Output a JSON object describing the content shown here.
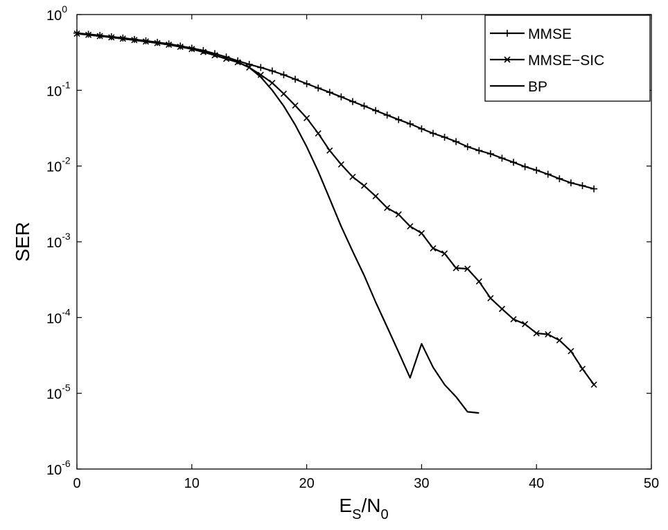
{
  "chart_data": {
    "type": "line",
    "xlabel": {
      "main": "E",
      "sub1": "S",
      "slash": "/N",
      "sub2": "0"
    },
    "ylabel": "SER",
    "xlim": [
      0,
      50
    ],
    "ylim": [
      1e-06,
      1
    ],
    "yscale": "log",
    "grid": false,
    "legend_position": "top-right",
    "x_ticks": [
      "0",
      "10",
      "20",
      "30",
      "40",
      "50"
    ],
    "y_ticks": [
      {
        "base": "10",
        "exp": "0"
      },
      {
        "base": "10",
        "exp": "-1"
      },
      {
        "base": "10",
        "exp": "-2"
      },
      {
        "base": "10",
        "exp": "-3"
      },
      {
        "base": "10",
        "exp": "-4"
      },
      {
        "base": "10",
        "exp": "-5"
      },
      {
        "base": "10",
        "exp": "-6"
      }
    ],
    "series": [
      {
        "name": "MMSE",
        "marker": "plus",
        "color": "#000000",
        "x": [
          0,
          1,
          2,
          3,
          4,
          5,
          6,
          7,
          8,
          9,
          10,
          11,
          12,
          13,
          14,
          15,
          16,
          17,
          18,
          19,
          20,
          21,
          22,
          23,
          24,
          25,
          26,
          27,
          28,
          29,
          30,
          31,
          32,
          33,
          34,
          35,
          36,
          37,
          38,
          39,
          40,
          41,
          42,
          43,
          44,
          45
        ],
        "y": [
          0.57,
          0.55,
          0.53,
          0.51,
          0.49,
          0.47,
          0.45,
          0.43,
          0.41,
          0.385,
          0.36,
          0.335,
          0.305,
          0.275,
          0.245,
          0.22,
          0.2,
          0.18,
          0.16,
          0.14,
          0.122,
          0.107,
          0.094,
          0.082,
          0.071,
          0.062,
          0.054,
          0.047,
          0.041,
          0.036,
          0.031,
          0.027,
          0.024,
          0.021,
          0.018,
          0.016,
          0.0145,
          0.0127,
          0.0112,
          0.0098,
          0.0088,
          0.0078,
          0.0068,
          0.006,
          0.0055,
          0.005
        ]
      },
      {
        "name": "MMSE−SIC",
        "marker": "x",
        "color": "#000000",
        "x": [
          0,
          1,
          2,
          3,
          4,
          5,
          6,
          7,
          8,
          9,
          10,
          11,
          12,
          13,
          14,
          15,
          16,
          17,
          18,
          19,
          20,
          21,
          22,
          23,
          24,
          25,
          26,
          27,
          28,
          29,
          30,
          31,
          32,
          33,
          34,
          35,
          36,
          37,
          38,
          39,
          40,
          41,
          42,
          43,
          44,
          45
        ],
        "y": [
          0.56,
          0.54,
          0.52,
          0.5,
          0.48,
          0.46,
          0.44,
          0.42,
          0.4,
          0.375,
          0.35,
          0.32,
          0.29,
          0.26,
          0.235,
          0.2,
          0.16,
          0.125,
          0.09,
          0.063,
          0.043,
          0.027,
          0.016,
          0.0105,
          0.0072,
          0.0055,
          0.004,
          0.0028,
          0.0023,
          0.0016,
          0.0013,
          0.00082,
          0.0007,
          0.00045,
          0.00044,
          0.0003,
          0.00018,
          0.00013,
          9.5e-05,
          8.2e-05,
          6.2e-05,
          6e-05,
          5e-05,
          3.6e-05,
          2.1e-05,
          1.3e-05
        ]
      },
      {
        "name": "BP",
        "marker": "none",
        "color": "#000000",
        "x": [
          0,
          1,
          2,
          3,
          4,
          5,
          6,
          7,
          8,
          9,
          10,
          11,
          12,
          13,
          14,
          15,
          16,
          17,
          18,
          19,
          20,
          21,
          22,
          23,
          24,
          25,
          26,
          27,
          28,
          29,
          30,
          31,
          32,
          33,
          34,
          35
        ],
        "y": [
          0.56,
          0.54,
          0.52,
          0.5,
          0.48,
          0.46,
          0.44,
          0.42,
          0.4,
          0.375,
          0.35,
          0.32,
          0.29,
          0.26,
          0.235,
          0.2,
          0.15,
          0.1,
          0.062,
          0.035,
          0.018,
          0.0085,
          0.0037,
          0.0016,
          0.00075,
          0.00036,
          0.00016,
          7.5e-05,
          3.5e-05,
          1.6e-05,
          4.5e-05,
          2.2e-05,
          1.3e-05,
          9e-06,
          5.7e-06,
          5.5e-06
        ]
      }
    ]
  }
}
